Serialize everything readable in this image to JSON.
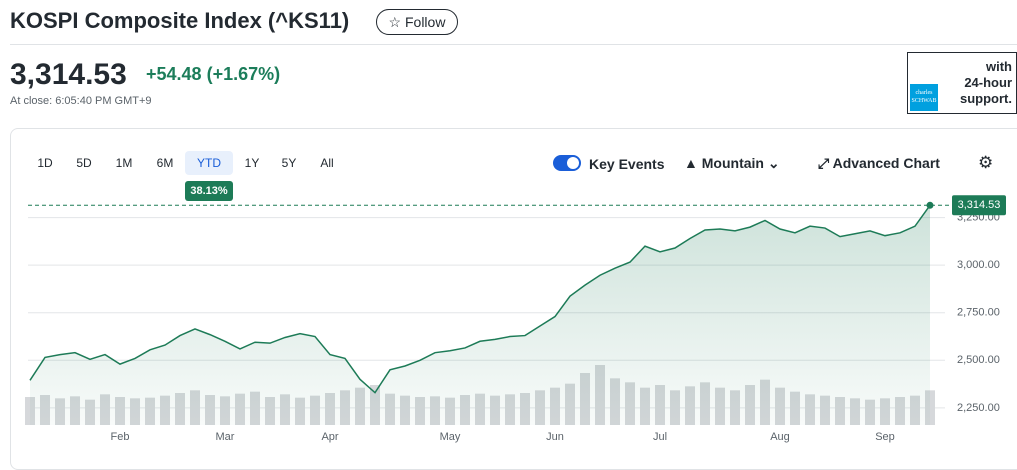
{
  "header": {
    "title": "KOSPI Composite Index (^KS11)",
    "follow": "Follow",
    "price": "3,314.53",
    "change": "+54.48",
    "change_percent": "(+1.67%)",
    "close_time": "At close: 6:05:40 PM GMT+9"
  },
  "ad": {
    "logo_top": "charles",
    "logo_bottom": "SCHWAB",
    "lines": [
      "with",
      "24-hour",
      "support."
    ]
  },
  "toolbar": {
    "ranges": [
      "1D",
      "5D",
      "1M",
      "6M",
      "YTD",
      "1Y",
      "5Y",
      "All"
    ],
    "selected_index": 4,
    "range_change": "38.13%",
    "key_events": "Key Events",
    "chart_type": "Mountain",
    "advanced": "Advanced Chart"
  },
  "chart_data": {
    "type": "area",
    "color": "#1d7b57",
    "categories": [
      null,
      null,
      null,
      null,
      null,
      null,
      "Feb",
      null,
      null,
      null,
      null,
      null,
      null,
      "Mar",
      null,
      null,
      null,
      null,
      null,
      null,
      "Apr",
      null,
      null,
      null,
      null,
      null,
      null,
      null,
      "May",
      null,
      null,
      null,
      null,
      null,
      null,
      "Jun",
      null,
      null,
      null,
      null,
      null,
      null,
      "Jul",
      null,
      null,
      null,
      null,
      null,
      null,
      null,
      "Aug",
      null,
      null,
      null,
      null,
      null,
      null,
      "Sep",
      null,
      null,
      null
    ],
    "values": [
      2395,
      2515,
      2530,
      2540,
      2505,
      2530,
      2480,
      2510,
      2555,
      2580,
      2630,
      2665,
      2635,
      2600,
      2560,
      2595,
      2590,
      2620,
      2640,
      2625,
      2530,
      2510,
      2400,
      2330,
      2450,
      2470,
      2500,
      2540,
      2550,
      2565,
      2600,
      2610,
      2625,
      2630,
      2680,
      2730,
      2837,
      2895,
      2947,
      2984,
      3016,
      3100,
      3070,
      3090,
      3140,
      3185,
      3190,
      3180,
      3200,
      3235,
      3190,
      3170,
      3205,
      3195,
      3150,
      3165,
      3180,
      3155,
      3170,
      3205,
      3314.53
    ],
    "value_labels": [
      null,
      null,
      null,
      null,
      null,
      null,
      null,
      null,
      null,
      null,
      null,
      null,
      null,
      null,
      null,
      null,
      null,
      null,
      null,
      null,
      null,
      null,
      null,
      null,
      null,
      null,
      null,
      null,
      null,
      null,
      null,
      null,
      null,
      null,
      null,
      null,
      null,
      null,
      null,
      null,
      null,
      null,
      null,
      null,
      null,
      null,
      null,
      null,
      null,
      null,
      null,
      null,
      null,
      null,
      null,
      null,
      null,
      null,
      null,
      null,
      "3,314.53"
    ],
    "volume": [
      420,
      450,
      400,
      430,
      380,
      460,
      420,
      400,
      410,
      440,
      480,
      520,
      450,
      430,
      470,
      500,
      420,
      460,
      410,
      440,
      480,
      520,
      560,
      600,
      470,
      440,
      420,
      430,
      410,
      450,
      470,
      440,
      460,
      480,
      520,
      560,
      620,
      780,
      900,
      700,
      640,
      560,
      600,
      520,
      580,
      640,
      560,
      520,
      600,
      680,
      560,
      500,
      460,
      440,
      420,
      400,
      380,
      400,
      420,
      440,
      520
    ],
    "ylim": [
      2160,
      3395
    ],
    "yticks": [
      {
        "value": 2250,
        "label": "2,250.00"
      },
      {
        "value": 2500,
        "label": "2,500.00"
      },
      {
        "value": 2750,
        "label": "2,750.00"
      },
      {
        "value": 3000,
        "label": "3,000.00"
      },
      {
        "value": 3250,
        "label": "3,250.00"
      }
    ],
    "grid": true
  }
}
